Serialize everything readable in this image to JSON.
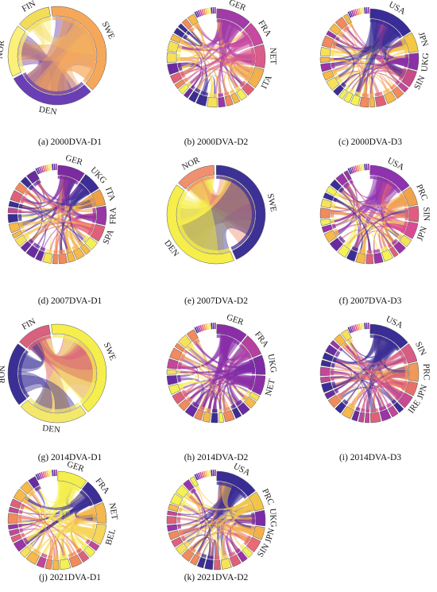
{
  "panels": [
    {
      "caption": "(a) 2000DVA-D1",
      "kind": "sparse",
      "sectors": [
        {
          "label": "FIN",
          "color": "#f2dc5a",
          "weight": 12
        },
        {
          "label": "SWE",
          "color": "#f6a85a",
          "weight": 40
        },
        {
          "label": "DEN",
          "color": "#6a3fb5",
          "weight": 30
        },
        {
          "label": "NOR",
          "color": "#fbf07a",
          "weight": 18
        }
      ]
    },
    {
      "caption": "(b) 2000DVA-D2",
      "kind": "dense",
      "sectors": [
        {
          "label": "GER",
          "color": "#a23aa8",
          "weight": 12
        },
        {
          "label": "FRA",
          "color": "#c849a0",
          "weight": 8
        },
        {
          "label": "NET",
          "color": "#d85d8a",
          "weight": 8
        },
        {
          "label": "ITA",
          "color": "#f2b04f",
          "weight": 7
        }
      ]
    },
    {
      "caption": "(c) 2000DVA-D3",
      "kind": "dense",
      "sectors": [
        {
          "label": "USA",
          "color": "#3a2c98",
          "weight": 16
        },
        {
          "label": "JPN",
          "color": "#f4c842",
          "weight": 7
        },
        {
          "label": "UKG",
          "color": "#8a2fa8",
          "weight": 6
        },
        {
          "label": "SIN",
          "color": "#c84a88",
          "weight": 6
        }
      ]
    },
    {
      "caption": "(d) 2007DVA-D1",
      "kind": "dense",
      "sectors": [
        {
          "label": "GER",
          "color": "#7b2aa0",
          "weight": 10
        },
        {
          "label": "UKG",
          "color": "#3d2d96",
          "weight": 7
        },
        {
          "label": "ITA",
          "color": "#f0a048",
          "weight": 6
        },
        {
          "label": "FRA",
          "color": "#9a35a8",
          "weight": 7
        },
        {
          "label": "SPA",
          "color": "#e0607a",
          "weight": 6
        }
      ]
    },
    {
      "caption": "(e) 2007DVA-D2",
      "kind": "sparse",
      "sectors": [
        {
          "label": "NOR",
          "color": "#ef9070",
          "weight": 14
        },
        {
          "label": "SWE",
          "color": "#3c3194",
          "weight": 44
        },
        {
          "label": "DEN",
          "color": "#f6ee4a",
          "weight": 42
        }
      ]
    },
    {
      "caption": "(f) 2007DVA-D3",
      "kind": "dense",
      "sectors": [
        {
          "label": "USA",
          "color": "#8e32b0",
          "weight": 16
        },
        {
          "label": "PRC",
          "color": "#f1a24d",
          "weight": 7
        },
        {
          "label": "SIN",
          "color": "#e05d80",
          "weight": 6
        },
        {
          "label": "JPN",
          "color": "#d94c94",
          "weight": 6
        }
      ]
    },
    {
      "caption": "(g) 2014DVA-D1",
      "kind": "sparse",
      "sectors": [
        {
          "label": "FIN",
          "color": "#d9607e",
          "weight": 12
        },
        {
          "label": "SWE",
          "color": "#f4ef4c",
          "weight": 42
        },
        {
          "label": "DEN",
          "color": "#f4e86c",
          "weight": 24
        },
        {
          "label": "NOR",
          "color": "#3a2f95",
          "weight": 22
        }
      ]
    },
    {
      "caption": "(h) 2014DVA-D2",
      "kind": "dense",
      "sectors": [
        {
          "label": "GER",
          "color": "#8a2ea8",
          "weight": 11
        },
        {
          "label": "FRA",
          "color": "#b640a0",
          "weight": 8
        },
        {
          "label": "UKG",
          "color": "#7e2ba6",
          "weight": 7
        },
        {
          "label": "NET",
          "color": "#8d30a8",
          "weight": 7
        }
      ]
    },
    {
      "caption": "(i) 2014DVA-D3",
      "kind": "dense",
      "sectors": [
        {
          "label": "USA",
          "color": "#3a2d95",
          "weight": 15
        },
        {
          "label": "SIN",
          "color": "#d75d84",
          "weight": 7
        },
        {
          "label": "PRC",
          "color": "#ef9a5a",
          "weight": 7
        },
        {
          "label": "JPN",
          "color": "#e8706a",
          "weight": 5
        },
        {
          "label": "IRE",
          "color": "#c74a92",
          "weight": 5
        }
      ]
    },
    {
      "caption": "(j) 2021DVA-D1",
      "kind": "dense",
      "sectors": [
        {
          "label": "GER",
          "color": "#f4ef4c",
          "weight": 10
        },
        {
          "label": "FRA",
          "color": "#3d2e96",
          "weight": 8
        },
        {
          "label": "NET",
          "color": "#f5b84e",
          "weight": 7
        },
        {
          "label": "BEL",
          "color": "#f5d65a",
          "weight": 7
        }
      ]
    },
    {
      "caption": "(k) 2021DVA-D2",
      "kind": "dense",
      "sectors": [
        {
          "label": "USA",
          "color": "#3a2c95",
          "weight": 16
        },
        {
          "label": "PRC",
          "color": "#f2c449",
          "weight": 7
        },
        {
          "label": "UKG",
          "color": "#7a2ca6",
          "weight": 6
        },
        {
          "label": "JPN",
          "color": "#f4b04a",
          "weight": 5
        },
        {
          "label": "SIN",
          "color": "#e86a74",
          "weight": 5
        }
      ]
    }
  ],
  "palette": [
    "#3b2d95",
    "#6a2ba2",
    "#9b34a8",
    "#c4469a",
    "#e0607a",
    "#f18a5c",
    "#f6b94a",
    "#f7e15a",
    "#f4f056"
  ]
}
